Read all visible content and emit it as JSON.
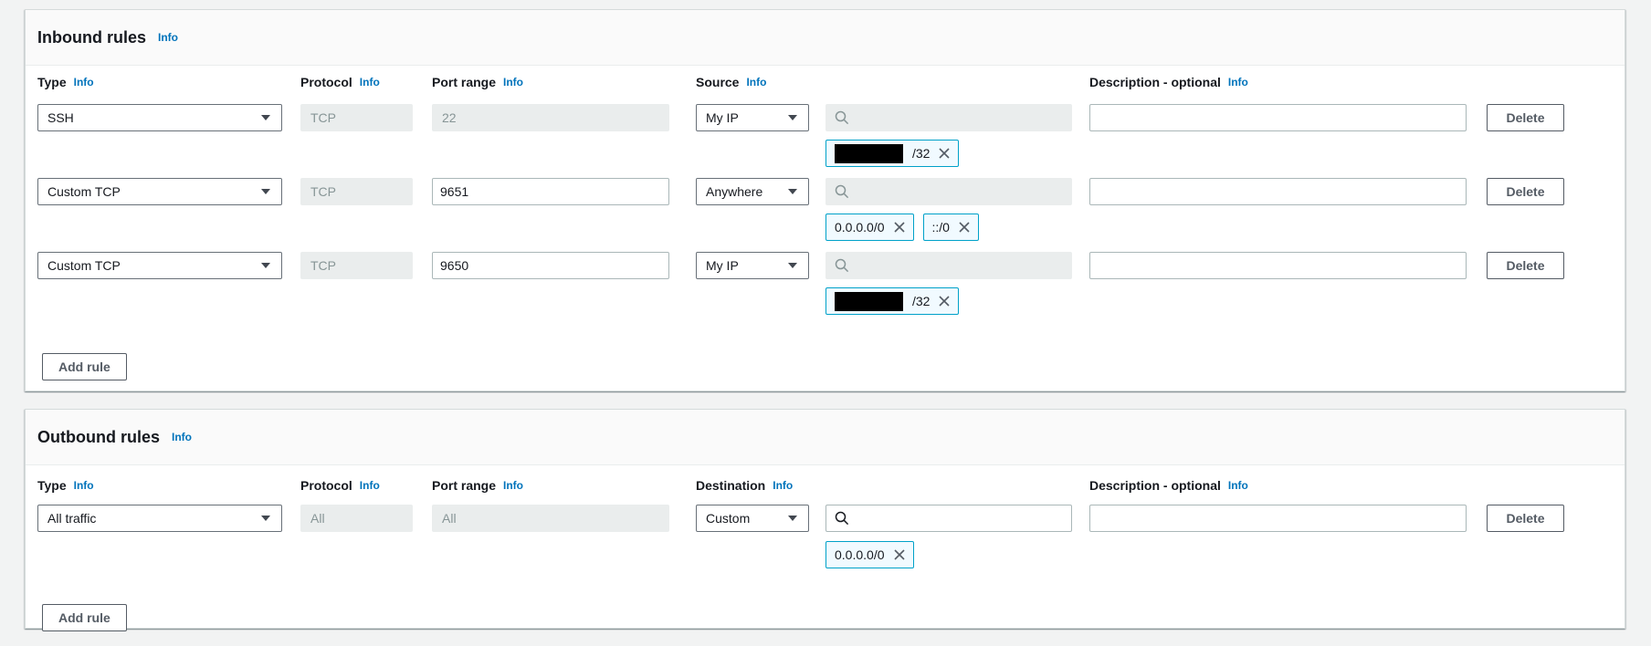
{
  "sections": [
    {
      "id": "inbound",
      "title": "Inbound rules",
      "info": "Info",
      "columns": [
        {
          "label": "Type",
          "info": "Info"
        },
        {
          "label": "Protocol",
          "info": "Info"
        },
        {
          "label": "Port range",
          "info": "Info"
        },
        {
          "label": "Source",
          "info": "Info"
        },
        {
          "label": "Description - optional",
          "info": "Info"
        }
      ],
      "rows": [
        {
          "type": "SSH",
          "protocol": "TCP",
          "port": "22",
          "port_editable": false,
          "scope": "My IP",
          "search_enabled": false,
          "tags": [
            {
              "redacted": true,
              "text": "/32"
            }
          ],
          "description": "",
          "delete_label": "Delete"
        },
        {
          "type": "Custom TCP",
          "protocol": "TCP",
          "port": "9651",
          "port_editable": true,
          "scope": "Anywhere",
          "search_enabled": false,
          "tags": [
            {
              "redacted": false,
              "text": "0.0.0.0/0"
            },
            {
              "redacted": false,
              "text": "::/0"
            }
          ],
          "description": "",
          "delete_label": "Delete"
        },
        {
          "type": "Custom TCP",
          "protocol": "TCP",
          "port": "9650",
          "port_editable": true,
          "scope": "My IP",
          "search_enabled": false,
          "tags": [
            {
              "redacted": true,
              "text": "/32"
            }
          ],
          "description": "",
          "delete_label": "Delete"
        }
      ],
      "add_rule_label": "Add rule"
    },
    {
      "id": "outbound",
      "title": "Outbound rules",
      "info": "Info",
      "columns": [
        {
          "label": "Type",
          "info": "Info"
        },
        {
          "label": "Protocol",
          "info": "Info"
        },
        {
          "label": "Port range",
          "info": "Info"
        },
        {
          "label": "Destination",
          "info": "Info"
        },
        {
          "label": "Description - optional",
          "info": "Info"
        }
      ],
      "rows": [
        {
          "type": "All traffic",
          "protocol": "All",
          "port": "All",
          "port_editable": false,
          "scope": "Custom",
          "search_enabled": true,
          "tags": [
            {
              "redacted": false,
              "text": "0.0.0.0/0"
            }
          ],
          "description": "",
          "delete_label": "Delete"
        }
      ],
      "add_rule_label": "Add rule"
    }
  ],
  "icons": {
    "search": "magnifier",
    "remove_tag": "x-cross",
    "dropdown": "triangle-down"
  },
  "colors": {
    "link_blue": "#0073bb",
    "tag_border": "#00a1c9",
    "tag_background": "#f1faff",
    "disabled_background": "#eaeded",
    "disabled_text": "#879596",
    "button_gray": "#545b64",
    "page_background": "#f2f3f3"
  }
}
